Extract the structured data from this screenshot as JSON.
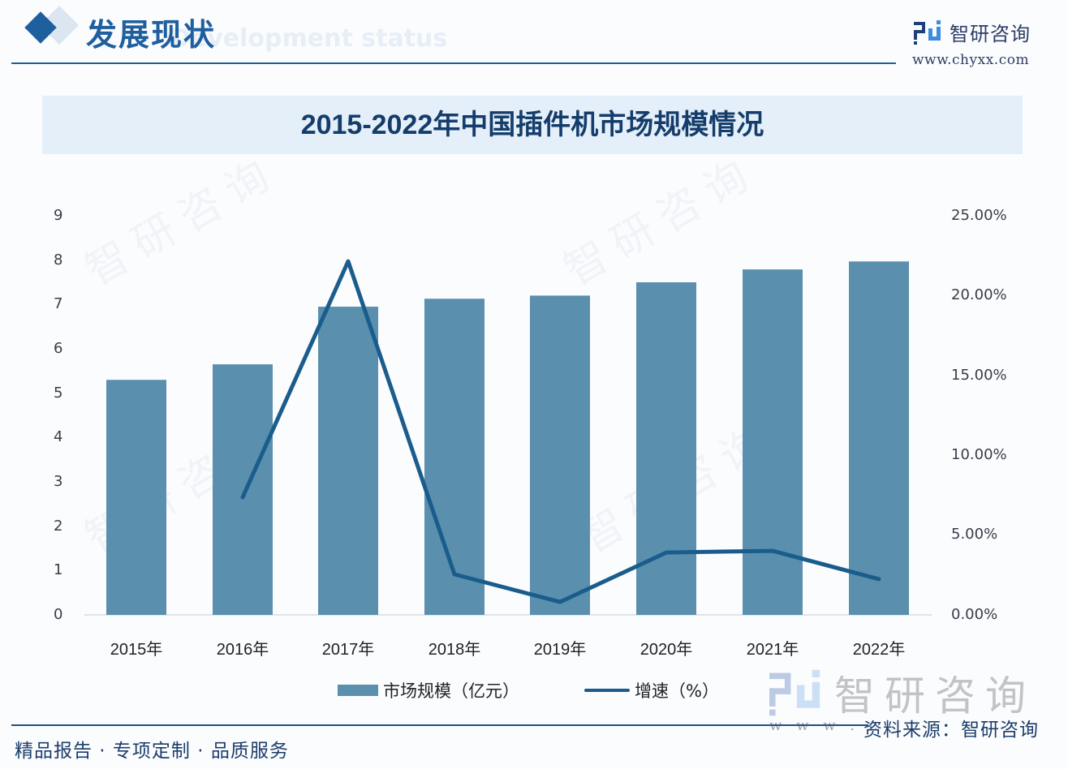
{
  "header": {
    "section_title": "发展现状",
    "section_subtitle": "Development status",
    "logo_text": "智研咨询",
    "logo_url": "www.chyxx.com"
  },
  "colors": {
    "bar": "#5b8fae",
    "line": "#1a5d8c",
    "accent": "#1f5f9e",
    "title_band": "#e5eff9"
  },
  "chart_data": {
    "type": "bar",
    "title": "2015-2022年中国插件机市场规模情况",
    "categories": [
      "2015年",
      "2016年",
      "2017年",
      "2018年",
      "2019年",
      "2020年",
      "2021年",
      "2022年"
    ],
    "series": [
      {
        "name": "市场规模（亿元）",
        "type": "bar",
        "axis": "left",
        "values": [
          5.3,
          5.65,
          6.95,
          7.13,
          7.2,
          7.5,
          7.79,
          7.97
        ]
      },
      {
        "name": "增速（%）",
        "type": "line",
        "axis": "right",
        "values": [
          null,
          7.37,
          22.15,
          2.54,
          0.81,
          3.91,
          4.01,
          2.24
        ]
      }
    ],
    "xlabel": "",
    "ylabel_left": "",
    "ylabel_right": "",
    "ylim_left": [
      0,
      9
    ],
    "ylim_right": [
      0,
      25
    ],
    "yticks_left": [
      "0",
      "1",
      "2",
      "3",
      "4",
      "5",
      "6",
      "7",
      "8",
      "9"
    ],
    "yticks_right": [
      "0.00%",
      "5.00%",
      "10.00%",
      "15.00%",
      "20.00%",
      "25.00%"
    ],
    "grid": false,
    "legend_position": "bottom"
  },
  "legend": {
    "bar_label": "市场规模（亿元）",
    "line_label": "增速（%）"
  },
  "watermark": {
    "brand": "智研咨询",
    "www": "w w w . c"
  },
  "footer": {
    "slogan": "精品报告 · 专项定制 · 品质服务",
    "source": "资料来源：智研咨询"
  }
}
